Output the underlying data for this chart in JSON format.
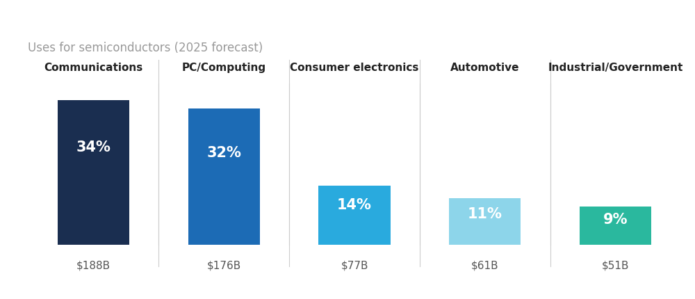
{
  "title": "Uses for semiconductors (2025 forecast)",
  "categories": [
    "Communications",
    "PC/Computing",
    "Consumer electronics",
    "Automotive",
    "Industrial/Government"
  ],
  "values": [
    34,
    32,
    14,
    11,
    9
  ],
  "dollar_labels": [
    "$188B",
    "$176B",
    "$77B",
    "$61B",
    "$51B"
  ],
  "pct_labels": [
    "34%",
    "32%",
    "14%",
    "11%",
    "9%"
  ],
  "bar_colors": [
    "#1a2e50",
    "#1c6bb5",
    "#29aade",
    "#8dd5ea",
    "#2ab89e"
  ],
  "background_color": "#ffffff",
  "title_color": "#999999",
  "category_color": "#222222",
  "dollar_color": "#555555",
  "pct_text_color": "#ffffff",
  "separator_color": "#cccccc",
  "bar_width": 0.55,
  "ylim_max": 38,
  "title_fontsize": 12,
  "category_fontsize": 11,
  "pct_fontsize": 15,
  "dollar_fontsize": 11,
  "n_bars": 5
}
